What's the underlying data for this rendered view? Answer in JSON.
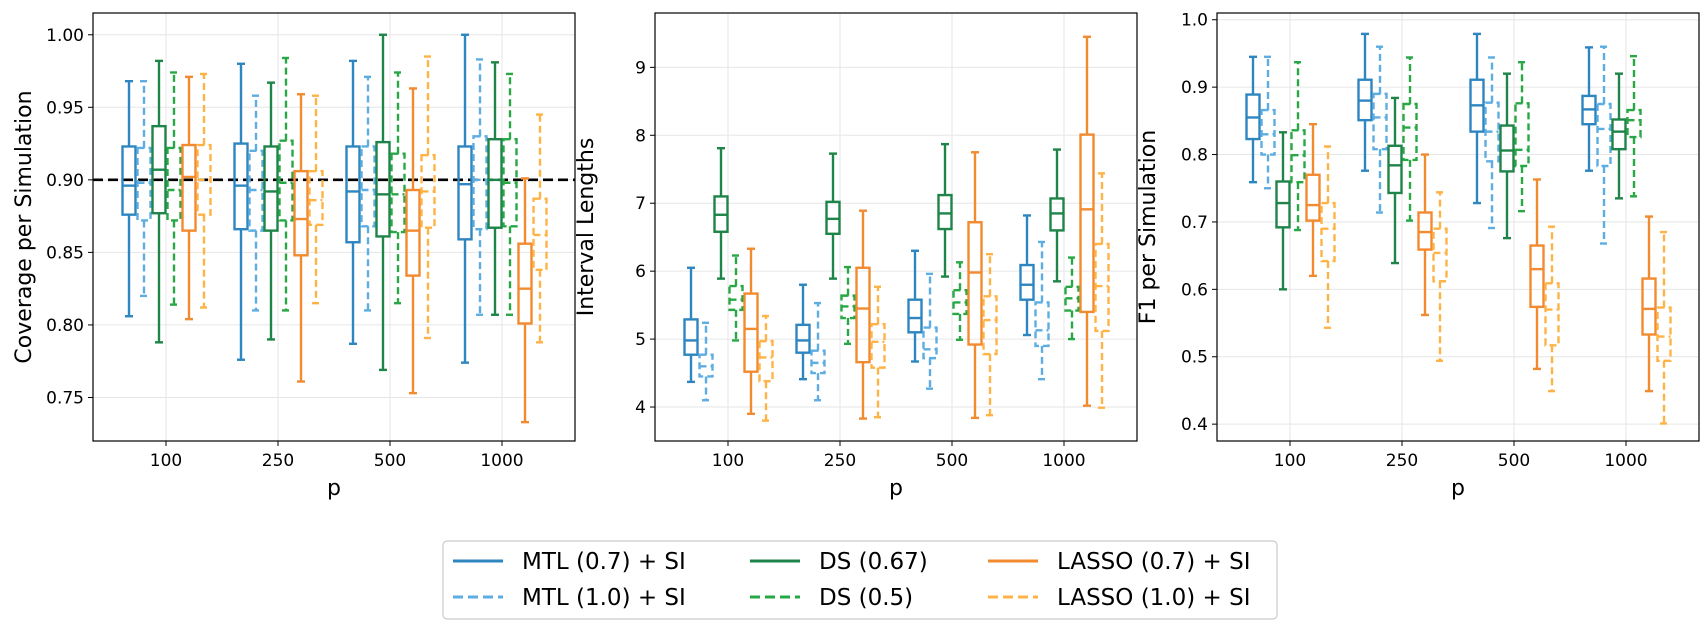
{
  "chart_data": [
    {
      "type": "box",
      "xlabel": "p",
      "ylabel": "Coverage per Simulation",
      "categories": [
        "100",
        "250",
        "500",
        "1000"
      ],
      "ylim": [
        0.72,
        1.015
      ],
      "yticks": [
        0.75,
        0.8,
        0.85,
        0.9,
        0.95,
        1.0
      ],
      "ytick_labels": [
        "0.75",
        "0.80",
        "0.85",
        "0.90",
        "0.95",
        "1.00"
      ],
      "reference_line": {
        "y": 0.9,
        "style": "dashed",
        "color": "#000000"
      },
      "grid": true,
      "series": [
        {
          "name": "MTL (0.7) + SI",
          "boxes": [
            {
              "min": 0.806,
              "q1": 0.876,
              "median": 0.896,
              "q3": 0.923,
              "max": 0.968
            },
            {
              "min": 0.776,
              "q1": 0.866,
              "median": 0.896,
              "q3": 0.925,
              "max": 0.98
            },
            {
              "min": 0.787,
              "q1": 0.857,
              "median": 0.892,
              "q3": 0.923,
              "max": 0.982
            },
            {
              "min": 0.774,
              "q1": 0.859,
              "median": 0.897,
              "q3": 0.923,
              "max": 1.0
            }
          ]
        },
        {
          "name": "MTL (1.0) + SI",
          "boxes": [
            {
              "min": 0.82,
              "q1": 0.872,
              "median": 0.898,
              "q3": 0.922,
              "max": 0.968
            },
            {
              "min": 0.81,
              "q1": 0.865,
              "median": 0.893,
              "q3": 0.92,
              "max": 0.958
            },
            {
              "min": 0.81,
              "q1": 0.868,
              "median": 0.893,
              "q3": 0.923,
              "max": 0.971
            },
            {
              "min": 0.807,
              "q1": 0.866,
              "median": 0.9,
              "q3": 0.93,
              "max": 0.983
            }
          ]
        },
        {
          "name": "DS (0.67)",
          "boxes": [
            {
              "min": 0.788,
              "q1": 0.877,
              "median": 0.907,
              "q3": 0.937,
              "max": 0.982
            },
            {
              "min": 0.79,
              "q1": 0.865,
              "median": 0.892,
              "q3": 0.923,
              "max": 0.967
            },
            {
              "min": 0.769,
              "q1": 0.861,
              "median": 0.89,
              "q3": 0.926,
              "max": 1.0
            },
            {
              "min": 0.807,
              "q1": 0.867,
              "median": 0.9,
              "q3": 0.928,
              "max": 0.981
            }
          ]
        },
        {
          "name": "DS (0.5)",
          "boxes": [
            {
              "min": 0.814,
              "q1": 0.872,
              "median": 0.893,
              "q3": 0.922,
              "max": 0.974
            },
            {
              "min": 0.81,
              "q1": 0.872,
              "median": 0.898,
              "q3": 0.927,
              "max": 0.984
            },
            {
              "min": 0.815,
              "q1": 0.864,
              "median": 0.89,
              "q3": 0.918,
              "max": 0.974
            },
            {
              "min": 0.807,
              "q1": 0.868,
              "median": 0.898,
              "q3": 0.928,
              "max": 0.973
            }
          ]
        },
        {
          "name": "LASSO (0.7) + SI",
          "boxes": [
            {
              "min": 0.804,
              "q1": 0.865,
              "median": 0.902,
              "q3": 0.924,
              "max": 0.971
            },
            {
              "min": 0.761,
              "q1": 0.848,
              "median": 0.873,
              "q3": 0.906,
              "max": 0.959
            },
            {
              "min": 0.753,
              "q1": 0.834,
              "median": 0.865,
              "q3": 0.893,
              "max": 0.963
            },
            {
              "min": 0.733,
              "q1": 0.801,
              "median": 0.825,
              "q3": 0.856,
              "max": 0.901
            }
          ]
        },
        {
          "name": "LASSO (1.0) + SI",
          "boxes": [
            {
              "min": 0.812,
              "q1": 0.876,
              "median": 0.9,
              "q3": 0.924,
              "max": 0.973
            },
            {
              "min": 0.815,
              "q1": 0.869,
              "median": 0.886,
              "q3": 0.906,
              "max": 0.958
            },
            {
              "min": 0.791,
              "q1": 0.867,
              "median": 0.892,
              "q3": 0.917,
              "max": 0.985
            },
            {
              "min": 0.788,
              "q1": 0.838,
              "median": 0.862,
              "q3": 0.887,
              "max": 0.945
            }
          ]
        }
      ]
    },
    {
      "type": "box",
      "xlabel": "p",
      "ylabel": "Interval Lengths",
      "categories": [
        "100",
        "250",
        "500",
        "1000"
      ],
      "ylim": [
        3.5,
        9.8
      ],
      "yticks": [
        4,
        5,
        6,
        7,
        8,
        9
      ],
      "ytick_labels": [
        "4",
        "5",
        "6",
        "7",
        "8",
        "9"
      ],
      "grid": true,
      "series": [
        {
          "name": "MTL (0.7) + SI",
          "boxes": [
            {
              "min": 4.37,
              "q1": 4.77,
              "median": 4.98,
              "q3": 5.29,
              "max": 6.05
            },
            {
              "min": 4.41,
              "q1": 4.8,
              "median": 4.98,
              "q3": 5.21,
              "max": 5.8
            },
            {
              "min": 4.67,
              "q1": 5.1,
              "median": 5.31,
              "q3": 5.58,
              "max": 6.3
            },
            {
              "min": 5.06,
              "q1": 5.58,
              "median": 5.8,
              "q3": 6.09,
              "max": 6.82
            }
          ]
        },
        {
          "name": "MTL (1.0) + SI",
          "boxes": [
            {
              "min": 4.1,
              "q1": 4.45,
              "median": 4.6,
              "q3": 4.77,
              "max": 5.24
            },
            {
              "min": 4.1,
              "q1": 4.5,
              "median": 4.65,
              "q3": 4.83,
              "max": 5.53
            },
            {
              "min": 4.27,
              "q1": 4.72,
              "median": 4.85,
              "q3": 5.17,
              "max": 5.96
            },
            {
              "min": 4.41,
              "q1": 4.9,
              "median": 5.13,
              "q3": 5.54,
              "max": 6.43
            }
          ]
        },
        {
          "name": "DS (0.67)",
          "boxes": [
            {
              "min": 5.89,
              "q1": 6.58,
              "median": 6.83,
              "q3": 7.1,
              "max": 7.81
            },
            {
              "min": 5.89,
              "q1": 6.55,
              "median": 6.77,
              "q3": 7.02,
              "max": 7.73
            },
            {
              "min": 5.92,
              "q1": 6.62,
              "median": 6.85,
              "q3": 7.12,
              "max": 7.87
            },
            {
              "min": 5.85,
              "q1": 6.6,
              "median": 6.85,
              "q3": 7.07,
              "max": 7.79
            }
          ]
        },
        {
          "name": "DS (0.5)",
          "boxes": [
            {
              "min": 4.98,
              "q1": 5.43,
              "median": 5.58,
              "q3": 5.78,
              "max": 6.23
            },
            {
              "min": 4.93,
              "q1": 5.31,
              "median": 5.48,
              "q3": 5.64,
              "max": 6.06
            },
            {
              "min": 4.99,
              "q1": 5.37,
              "median": 5.54,
              "q3": 5.72,
              "max": 6.13
            },
            {
              "min": 5.0,
              "q1": 5.42,
              "median": 5.6,
              "q3": 5.77,
              "max": 6.2
            }
          ]
        },
        {
          "name": "LASSO (0.7) + SI",
          "boxes": [
            {
              "min": 3.9,
              "q1": 4.52,
              "median": 5.15,
              "q3": 5.67,
              "max": 6.33
            },
            {
              "min": 3.83,
              "q1": 4.66,
              "median": 5.45,
              "q3": 6.05,
              "max": 6.89
            },
            {
              "min": 3.84,
              "q1": 4.92,
              "median": 5.98,
              "q3": 6.72,
              "max": 7.75
            },
            {
              "min": 4.02,
              "q1": 5.4,
              "median": 6.91,
              "q3": 8.01,
              "max": 9.45
            }
          ]
        },
        {
          "name": "LASSO (1.0) + SI",
          "boxes": [
            {
              "min": 3.8,
              "q1": 4.38,
              "median": 4.73,
              "q3": 4.97,
              "max": 5.34
            },
            {
              "min": 3.85,
              "q1": 4.58,
              "median": 4.96,
              "q3": 5.22,
              "max": 5.77
            },
            {
              "min": 3.88,
              "q1": 4.78,
              "median": 5.28,
              "q3": 5.63,
              "max": 6.25
            },
            {
              "min": 3.99,
              "q1": 5.12,
              "median": 5.78,
              "q3": 6.4,
              "max": 7.44
            }
          ]
        }
      ]
    },
    {
      "type": "box",
      "xlabel": "p",
      "ylabel": "F1 per Simulation",
      "categories": [
        "100",
        "250",
        "500",
        "1000"
      ],
      "ylim": [
        0.375,
        1.01
      ],
      "yticks": [
        0.4,
        0.5,
        0.6,
        0.7,
        0.8,
        0.9,
        1.0
      ],
      "ytick_labels": [
        "0.4",
        "0.5",
        "0.6",
        "0.7",
        "0.8",
        "0.9",
        "1.0"
      ],
      "grid": true,
      "series": [
        {
          "name": "MTL (0.7) + SI",
          "boxes": [
            {
              "min": 0.759,
              "q1": 0.823,
              "median": 0.855,
              "q3": 0.889,
              "max": 0.945
            },
            {
              "min": 0.776,
              "q1": 0.851,
              "median": 0.88,
              "q3": 0.911,
              "max": 0.979
            },
            {
              "min": 0.728,
              "q1": 0.834,
              "median": 0.873,
              "q3": 0.911,
              "max": 0.979
            },
            {
              "min": 0.776,
              "q1": 0.845,
              "median": 0.867,
              "q3": 0.887,
              "max": 0.959
            }
          ]
        },
        {
          "name": "MTL (1.0) + SI",
          "boxes": [
            {
              "min": 0.75,
              "q1": 0.8,
              "median": 0.83,
              "q3": 0.866,
              "max": 0.945
            },
            {
              "min": 0.714,
              "q1": 0.808,
              "median": 0.855,
              "q3": 0.89,
              "max": 0.96
            },
            {
              "min": 0.691,
              "q1": 0.79,
              "median": 0.834,
              "q3": 0.877,
              "max": 0.944
            },
            {
              "min": 0.668,
              "q1": 0.783,
              "median": 0.838,
              "q3": 0.875,
              "max": 0.96
            }
          ]
        },
        {
          "name": "DS (0.67)",
          "boxes": [
            {
              "min": 0.6,
              "q1": 0.692,
              "median": 0.728,
              "q3": 0.76,
              "max": 0.833
            },
            {
              "min": 0.639,
              "q1": 0.743,
              "median": 0.784,
              "q3": 0.813,
              "max": 0.884
            },
            {
              "min": 0.676,
              "q1": 0.775,
              "median": 0.806,
              "q3": 0.843,
              "max": 0.92
            },
            {
              "min": 0.735,
              "q1": 0.808,
              "median": 0.834,
              "q3": 0.852,
              "max": 0.92
            }
          ]
        },
        {
          "name": "DS (0.5)",
          "boxes": [
            {
              "min": 0.688,
              "q1": 0.759,
              "median": 0.799,
              "q3": 0.836,
              "max": 0.937
            },
            {
              "min": 0.702,
              "q1": 0.792,
              "median": 0.84,
              "q3": 0.875,
              "max": 0.944
            },
            {
              "min": 0.716,
              "q1": 0.783,
              "median": 0.807,
              "q3": 0.876,
              "max": 0.937
            },
            {
              "min": 0.738,
              "q1": 0.826,
              "median": 0.851,
              "q3": 0.866,
              "max": 0.946
            }
          ]
        },
        {
          "name": "LASSO (0.7) + SI",
          "boxes": [
            {
              "min": 0.62,
              "q1": 0.702,
              "median": 0.725,
              "q3": 0.77,
              "max": 0.845
            },
            {
              "min": 0.562,
              "q1": 0.659,
              "median": 0.685,
              "q3": 0.714,
              "max": 0.8
            },
            {
              "min": 0.482,
              "q1": 0.574,
              "median": 0.63,
              "q3": 0.665,
              "max": 0.763
            },
            {
              "min": 0.449,
              "q1": 0.533,
              "median": 0.571,
              "q3": 0.616,
              "max": 0.708
            }
          ]
        },
        {
          "name": "LASSO (1.0) + SI",
          "boxes": [
            {
              "min": 0.543,
              "q1": 0.642,
              "median": 0.69,
              "q3": 0.728,
              "max": 0.812
            },
            {
              "min": 0.494,
              "q1": 0.612,
              "median": 0.654,
              "q3": 0.69,
              "max": 0.744
            },
            {
              "min": 0.449,
              "q1": 0.517,
              "median": 0.57,
              "q3": 0.609,
              "max": 0.693
            },
            {
              "min": 0.401,
              "q1": 0.494,
              "median": 0.53,
              "q3": 0.573,
              "max": 0.685
            }
          ]
        }
      ]
    }
  ],
  "legend": {
    "placement": "bottom-center",
    "entries": [
      {
        "label": "MTL (0.7) + SI",
        "color": "#2E86C1",
        "style": "solid"
      },
      {
        "label": "MTL (1.0) + SI",
        "color": "#5DADE2",
        "style": "dashed"
      },
      {
        "label": "DS (0.67)",
        "color": "#1E8449",
        "style": "solid"
      },
      {
        "label": "DS (0.5)",
        "color": "#28A745",
        "style": "dashed"
      },
      {
        "label": "LASSO (0.7) + SI",
        "color": "#F28A30",
        "style": "solid"
      },
      {
        "label": "LASSO (1.0) + SI",
        "color": "#FFB347",
        "style": "dashed"
      }
    ]
  }
}
